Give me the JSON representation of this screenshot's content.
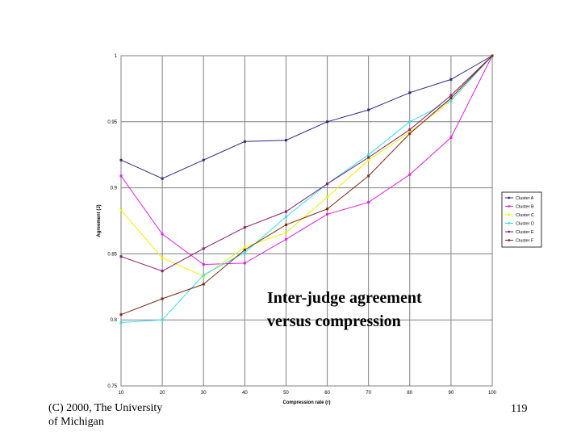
{
  "slide": {
    "caption_line1": "Inter-judge agreement",
    "caption_line2": "versus compression",
    "footer_line1": "(C) 2000, The University",
    "footer_line2": "of Michigan",
    "page_number": "119"
  },
  "chart_data": {
    "type": "line",
    "xlabel": "Compression rate (r)",
    "ylabel": "Agreement (J)",
    "x": [
      10,
      20,
      30,
      40,
      50,
      60,
      70,
      80,
      90,
      100
    ],
    "ylim": [
      0.75,
      1
    ],
    "yticks": [
      0.75,
      0.8,
      0.85,
      0.9,
      0.95,
      1
    ],
    "ytick_labels": [
      "0.75",
      "0.8",
      "0.85",
      "0.9",
      "0.95",
      "1"
    ],
    "xtick_labels": [
      "10",
      "20",
      "30",
      "40",
      "50",
      "60",
      "70",
      "80",
      "90",
      "100"
    ],
    "grid": true,
    "legend_position": "right",
    "series": [
      {
        "name": "Cluster A",
        "color": "#2b2b80",
        "values": [
          0.921,
          0.907,
          0.921,
          0.935,
          0.936,
          0.95,
          0.959,
          0.972,
          0.982,
          1.0
        ]
      },
      {
        "name": "Cluster B",
        "color": "#e020e0",
        "values": [
          0.909,
          0.865,
          0.842,
          0.843,
          0.861,
          0.88,
          0.889,
          0.91,
          0.938,
          1.0
        ]
      },
      {
        "name": "Cluster C",
        "color": "#f0f000",
        "values": [
          0.883,
          0.847,
          0.833,
          0.855,
          0.866,
          0.893,
          0.921,
          0.942,
          0.966,
          1.0
        ]
      },
      {
        "name": "Cluster D",
        "color": "#30e0f0",
        "values": [
          0.798,
          0.8,
          0.834,
          0.851,
          0.878,
          0.903,
          0.925,
          0.95,
          0.966,
          1.0
        ]
      },
      {
        "name": "Cluster E",
        "color": "#8a1a6a",
        "values": [
          0.848,
          0.837,
          0.854,
          0.87,
          0.882,
          0.903,
          0.923,
          0.944,
          0.97,
          1.0
        ]
      },
      {
        "name": "Cluster F",
        "color": "#7a2a10",
        "values": [
          0.804,
          0.816,
          0.827,
          0.853,
          0.872,
          0.884,
          0.909,
          0.941,
          0.968,
          1.0
        ]
      }
    ]
  }
}
